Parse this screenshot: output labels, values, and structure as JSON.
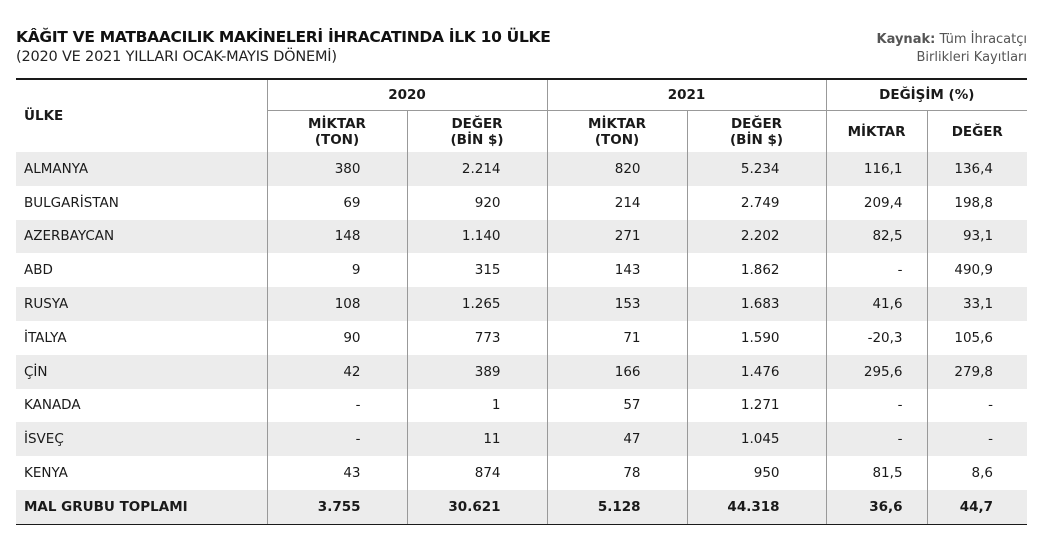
{
  "header": {
    "title": "KÂĞIT VE MATBAACILIK MAKİNELERİ İHRACATINDA İLK 10 ÜLKE",
    "subtitle": "(2020 VE 2021 YILLARI OCAK-MAYIS DÖNEMİ)",
    "source_label": "Kaynak:",
    "source_line1": "Tüm İhracatçı",
    "source_line2": "Birlikleri Kayıtları"
  },
  "table": {
    "country_header": "ÜLKE",
    "groups": {
      "y2020": "2020",
      "y2021": "2021",
      "change": "DEĞİŞİM (%)"
    },
    "sub_headers": {
      "miktar_l1": "MİKTAR",
      "miktar_l2": "(TON)",
      "deger_l1": "DEĞER",
      "deger_l2": "(BİN $)",
      "chg_miktar": "MİKTAR",
      "chg_deger": "DEĞER"
    },
    "rows": [
      [
        "ALMANYA",
        "380",
        "2.214",
        "820",
        "5.234",
        "116,1",
        "136,4"
      ],
      [
        "BULGARİSTAN",
        "69",
        "920",
        "214",
        "2.749",
        "209,4",
        "198,8"
      ],
      [
        "AZERBAYCAN",
        "148",
        "1.140",
        "271",
        "2.202",
        "82,5",
        "93,1"
      ],
      [
        "ABD",
        "9",
        "315",
        "143",
        "1.862",
        "-",
        "490,9"
      ],
      [
        "RUSYA",
        "108",
        "1.265",
        "153",
        "1.683",
        "41,6",
        "33,1"
      ],
      [
        "İTALYA",
        "90",
        "773",
        "71",
        "1.590",
        "-20,3",
        "105,6"
      ],
      [
        "ÇİN",
        "42",
        "389",
        "166",
        "1.476",
        "295,6",
        "279,8"
      ],
      [
        "KANADA",
        "-",
        "1",
        "57",
        "1.271",
        "-",
        "-"
      ],
      [
        "İSVEÇ",
        "-",
        "11",
        "47",
        "1.045",
        "-",
        "-"
      ],
      [
        "KENYA",
        "43",
        "874",
        "78",
        "950",
        "81,5",
        "8,6"
      ]
    ],
    "total": [
      "MAL GRUBU TOPLAMI",
      "3.755",
      "30.621",
      "5.128",
      "44.318",
      "36,6",
      "44,7"
    ]
  },
  "colors": {
    "row_shade": "#ececec",
    "rule": "#1a1a1a",
    "divider": "#999999"
  }
}
